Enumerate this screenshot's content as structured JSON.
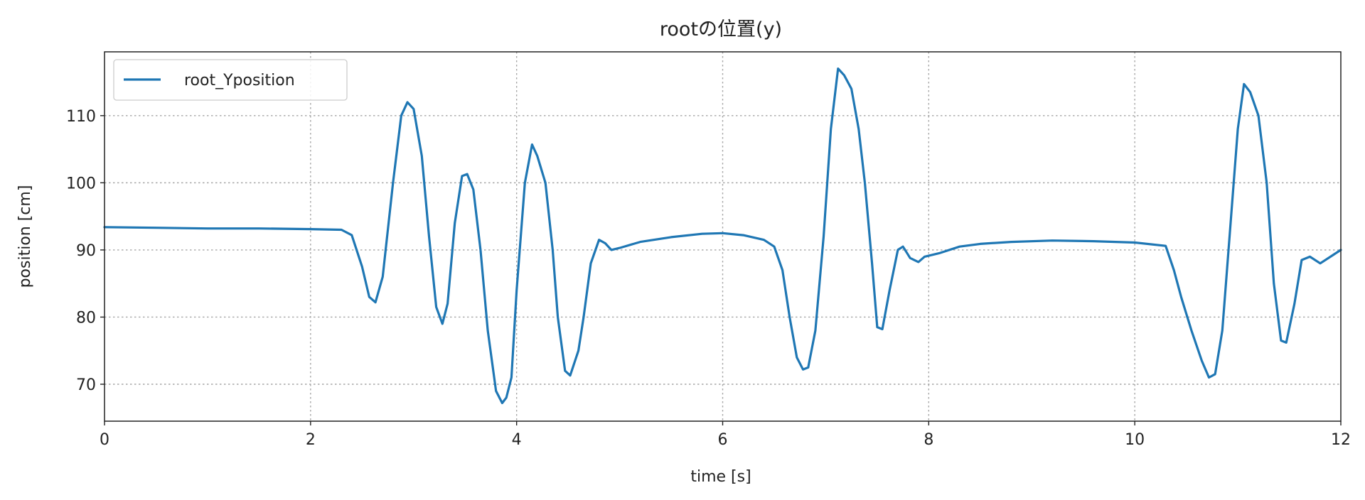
{
  "chart_data": {
    "type": "line",
    "title": "rootの位置(y)",
    "xlabel": "time [s]",
    "ylabel": "position [cm]",
    "xlim": [
      0,
      12
    ],
    "ylim": [
      64.5,
      119.5
    ],
    "xticks": [
      0,
      2,
      4,
      6,
      8,
      10,
      12
    ],
    "yticks": [
      70,
      80,
      90,
      100,
      110
    ],
    "grid": true,
    "legend_position": "top-left",
    "series": [
      {
        "name": "root_Yposition",
        "color": "#1f77b4",
        "points": [
          [
            0,
            93.4
          ],
          [
            0.5,
            93.3
          ],
          [
            1.0,
            93.2
          ],
          [
            1.5,
            93.2
          ],
          [
            2.0,
            93.1
          ],
          [
            2.3,
            93.0
          ],
          [
            2.4,
            92.2
          ],
          [
            2.5,
            87.5
          ],
          [
            2.57,
            83.0
          ],
          [
            2.63,
            82.2
          ],
          [
            2.7,
            86.0
          ],
          [
            2.8,
            100.0
          ],
          [
            2.88,
            110.0
          ],
          [
            2.94,
            112.0
          ],
          [
            3.0,
            111.0
          ],
          [
            3.08,
            104.0
          ],
          [
            3.15,
            92.0
          ],
          [
            3.22,
            81.5
          ],
          [
            3.28,
            79.0
          ],
          [
            3.33,
            82.0
          ],
          [
            3.4,
            94.0
          ],
          [
            3.47,
            101.0
          ],
          [
            3.52,
            101.3
          ],
          [
            3.58,
            99.0
          ],
          [
            3.65,
            90.0
          ],
          [
            3.72,
            78.0
          ],
          [
            3.8,
            69.0
          ],
          [
            3.86,
            67.2
          ],
          [
            3.9,
            68.0
          ],
          [
            3.95,
            71.0
          ],
          [
            4.0,
            84.0
          ],
          [
            4.08,
            100.0
          ],
          [
            4.15,
            105.7
          ],
          [
            4.2,
            104.0
          ],
          [
            4.28,
            100.0
          ],
          [
            4.35,
            90.0
          ],
          [
            4.4,
            80.0
          ],
          [
            4.47,
            72.0
          ],
          [
            4.52,
            71.3
          ],
          [
            4.6,
            75.0
          ],
          [
            4.65,
            80.0
          ],
          [
            4.72,
            88.0
          ],
          [
            4.8,
            91.5
          ],
          [
            4.86,
            91.0
          ],
          [
            4.92,
            90.0
          ],
          [
            5.0,
            90.3
          ],
          [
            5.2,
            91.2
          ],
          [
            5.5,
            91.9
          ],
          [
            5.8,
            92.4
          ],
          [
            6.0,
            92.5
          ],
          [
            6.2,
            92.2
          ],
          [
            6.4,
            91.5
          ],
          [
            6.5,
            90.5
          ],
          [
            6.58,
            87.0
          ],
          [
            6.65,
            80.0
          ],
          [
            6.72,
            74.0
          ],
          [
            6.78,
            72.2
          ],
          [
            6.83,
            72.5
          ],
          [
            6.9,
            78.0
          ],
          [
            6.98,
            92.0
          ],
          [
            7.05,
            108.0
          ],
          [
            7.12,
            117.0
          ],
          [
            7.18,
            116.0
          ],
          [
            7.25,
            114.0
          ],
          [
            7.32,
            108.0
          ],
          [
            7.38,
            100.0
          ],
          [
            7.45,
            88.0
          ],
          [
            7.5,
            78.5
          ],
          [
            7.55,
            78.2
          ],
          [
            7.62,
            84.0
          ],
          [
            7.7,
            90.0
          ],
          [
            7.75,
            90.5
          ],
          [
            7.82,
            88.8
          ],
          [
            7.9,
            88.2
          ],
          [
            7.96,
            89.0
          ],
          [
            8.1,
            89.5
          ],
          [
            8.3,
            90.5
          ],
          [
            8.5,
            90.9
          ],
          [
            8.8,
            91.2
          ],
          [
            9.2,
            91.4
          ],
          [
            9.6,
            91.3
          ],
          [
            10.0,
            91.1
          ],
          [
            10.3,
            90.6
          ],
          [
            10.38,
            87.0
          ],
          [
            10.45,
            83.0
          ],
          [
            10.55,
            78.0
          ],
          [
            10.65,
            73.5
          ],
          [
            10.72,
            71.0
          ],
          [
            10.78,
            71.5
          ],
          [
            10.85,
            78.0
          ],
          [
            10.92,
            92.0
          ],
          [
            11.0,
            108.0
          ],
          [
            11.06,
            114.7
          ],
          [
            11.12,
            113.5
          ],
          [
            11.2,
            110.0
          ],
          [
            11.28,
            100.0
          ],
          [
            11.35,
            85.0
          ],
          [
            11.42,
            76.5
          ],
          [
            11.47,
            76.2
          ],
          [
            11.55,
            82.0
          ],
          [
            11.62,
            88.5
          ],
          [
            11.7,
            89.0
          ],
          [
            11.8,
            88.0
          ],
          [
            11.9,
            89.0
          ],
          [
            12.0,
            90.0
          ]
        ]
      }
    ]
  }
}
